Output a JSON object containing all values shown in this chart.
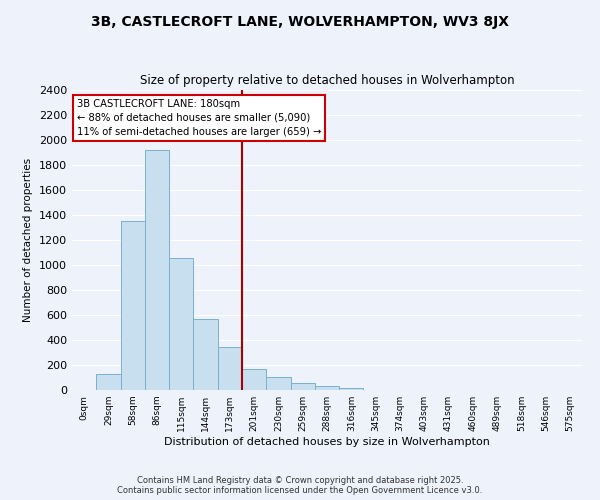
{
  "title": "3B, CASTLECROFT LANE, WOLVERHAMPTON, WV3 8JX",
  "subtitle": "Size of property relative to detached houses in Wolverhampton",
  "xlabel": "Distribution of detached houses by size in Wolverhampton",
  "ylabel": "Number of detached properties",
  "bar_labels": [
    "0sqm",
    "29sqm",
    "58sqm",
    "86sqm",
    "115sqm",
    "144sqm",
    "173sqm",
    "201sqm",
    "230sqm",
    "259sqm",
    "288sqm",
    "316sqm",
    "345sqm",
    "374sqm",
    "403sqm",
    "431sqm",
    "460sqm",
    "489sqm",
    "518sqm",
    "546sqm",
    "575sqm"
  ],
  "bar_values": [
    0,
    125,
    1350,
    1920,
    1060,
    570,
    345,
    165,
    105,
    60,
    30,
    20,
    0,
    0,
    0,
    0,
    0,
    0,
    0,
    0,
    0
  ],
  "bar_color": "#c8dff0",
  "bar_edge_color": "#7ab0d0",
  "vline_color": "#aa0000",
  "annotation_title": "3B CASTLECROFT LANE: 180sqm",
  "annotation_line1": "← 88% of detached houses are smaller (5,090)",
  "annotation_line2": "11% of semi-detached houses are larger (659) →",
  "annotation_box_color": "white",
  "annotation_box_edge": "#cc0000",
  "ylim": [
    0,
    2400
  ],
  "yticks": [
    0,
    200,
    400,
    600,
    800,
    1000,
    1200,
    1400,
    1600,
    1800,
    2000,
    2200,
    2400
  ],
  "footer_line1": "Contains HM Land Registry data © Crown copyright and database right 2025.",
  "footer_line2": "Contains public sector information licensed under the Open Government Licence v3.0.",
  "bg_color": "#eef2fb",
  "grid_color": "#ffffff"
}
